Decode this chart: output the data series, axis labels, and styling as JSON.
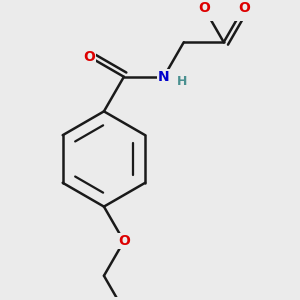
{
  "bg_color": "#ebebeb",
  "bond_color": "#1a1a1a",
  "bond_width": 1.8,
  "atom_colors": {
    "O": "#dd0000",
    "N": "#0000cc",
    "H": "#4a9090",
    "C": "#1a1a1a"
  },
  "font_size_atom": 10,
  "font_size_h": 9
}
